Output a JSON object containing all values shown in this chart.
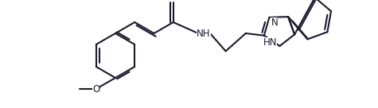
{
  "bg_color": "#ffffff",
  "line_color": "#1a1a2e",
  "line_width": 1.5,
  "label_color": "#1a1a2e",
  "font_size": 8.5,
  "fig_width": 4.75,
  "fig_height": 1.36,
  "dpi": 100,
  "xlim": [
    0,
    475
  ],
  "ylim": [
    0,
    136
  ]
}
